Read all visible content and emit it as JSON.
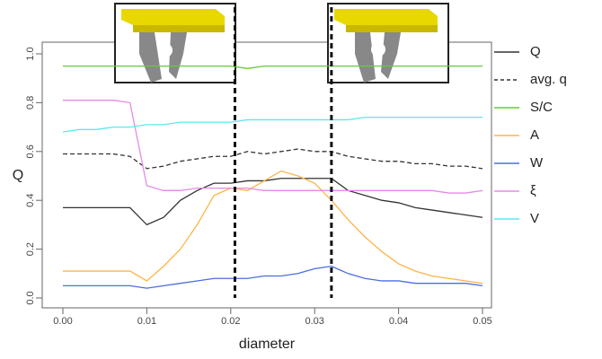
{
  "chart_data": {
    "type": "line",
    "xlabel": "diameter",
    "ylabel": "Q",
    "x": [
      0,
      0.002,
      0.004,
      0.006,
      0.008,
      0.01,
      0.012,
      0.014,
      0.016,
      0.018,
      0.02,
      0.022,
      0.024,
      0.026,
      0.028,
      0.03,
      0.032,
      0.034,
      0.036,
      0.038,
      0.04,
      0.042,
      0.044,
      0.046,
      0.048,
      0.05
    ],
    "series": [
      {
        "name": "Q",
        "color": "#333333",
        "dash": false,
        "values": [
          0.37,
          0.37,
          0.37,
          0.37,
          0.37,
          0.3,
          0.33,
          0.4,
          0.44,
          0.47,
          0.47,
          0.48,
          0.48,
          0.49,
          0.49,
          0.49,
          0.49,
          0.44,
          0.42,
          0.4,
          0.39,
          0.37,
          0.36,
          0.35,
          0.34,
          0.33
        ]
      },
      {
        "name": "avg. q",
        "color": "#333333",
        "dash": true,
        "values": [
          0.59,
          0.59,
          0.59,
          0.59,
          0.58,
          0.53,
          0.54,
          0.56,
          0.57,
          0.58,
          0.58,
          0.6,
          0.59,
          0.6,
          0.61,
          0.6,
          0.6,
          0.58,
          0.57,
          0.56,
          0.56,
          0.55,
          0.55,
          0.54,
          0.54,
          0.53
        ]
      },
      {
        "name": "S/C",
        "color": "#66cc33",
        "dash": false,
        "values": [
          0.95,
          0.95,
          0.95,
          0.95,
          0.95,
          0.95,
          0.95,
          0.95,
          0.95,
          0.95,
          0.95,
          0.94,
          0.95,
          0.95,
          0.95,
          0.95,
          0.95,
          0.95,
          0.95,
          0.95,
          0.95,
          0.95,
          0.95,
          0.95,
          0.95,
          0.95
        ]
      },
      {
        "name": "A",
        "color": "#ffb347",
        "dash": false,
        "values": [
          0.11,
          0.11,
          0.11,
          0.11,
          0.11,
          0.07,
          0.13,
          0.2,
          0.3,
          0.42,
          0.45,
          0.44,
          0.48,
          0.52,
          0.5,
          0.47,
          0.4,
          0.32,
          0.25,
          0.19,
          0.14,
          0.11,
          0.09,
          0.08,
          0.07,
          0.06
        ]
      },
      {
        "name": "W",
        "color": "#4a6ee0",
        "dash": false,
        "values": [
          0.05,
          0.05,
          0.05,
          0.05,
          0.05,
          0.04,
          0.05,
          0.06,
          0.07,
          0.08,
          0.08,
          0.08,
          0.09,
          0.09,
          0.1,
          0.12,
          0.13,
          0.1,
          0.08,
          0.07,
          0.07,
          0.06,
          0.06,
          0.06,
          0.06,
          0.05
        ]
      },
      {
        "name": "ξ",
        "color": "#e58be5",
        "dash": false,
        "values": [
          0.81,
          0.81,
          0.81,
          0.81,
          0.8,
          0.46,
          0.44,
          0.44,
          0.45,
          0.45,
          0.45,
          0.45,
          0.44,
          0.44,
          0.44,
          0.44,
          0.44,
          0.44,
          0.44,
          0.44,
          0.44,
          0.44,
          0.44,
          0.43,
          0.43,
          0.44
        ]
      },
      {
        "name": "V",
        "color": "#5ce8ee",
        "dash": false,
        "values": [
          0.68,
          0.69,
          0.69,
          0.7,
          0.7,
          0.71,
          0.71,
          0.72,
          0.72,
          0.72,
          0.72,
          0.73,
          0.73,
          0.73,
          0.73,
          0.73,
          0.73,
          0.73,
          0.74,
          0.74,
          0.74,
          0.74,
          0.74,
          0.74,
          0.74,
          0.74
        ]
      }
    ],
    "markers": [
      0.0205,
      0.032
    ],
    "xlim": [
      0,
      0.05
    ],
    "ylim": [
      0,
      1
    ],
    "xticks": [
      {
        "value": 0,
        "label": "0.00"
      },
      {
        "value": 0.01,
        "label": "0.01"
      },
      {
        "value": 0.02,
        "label": "0.02"
      },
      {
        "value": 0.03,
        "label": "0.03"
      },
      {
        "value": 0.04,
        "label": "0.04"
      },
      {
        "value": 0.05,
        "label": "0.05"
      }
    ],
    "yticks": [
      {
        "value": 0,
        "label": "0.0"
      },
      {
        "value": 0.2,
        "label": "0.2"
      },
      {
        "value": 0.4,
        "label": "0.4"
      },
      {
        "value": 0.6,
        "label": "0.6"
      },
      {
        "value": 0.8,
        "label": "0.8"
      },
      {
        "value": 1,
        "label": "1.0"
      }
    ]
  }
}
